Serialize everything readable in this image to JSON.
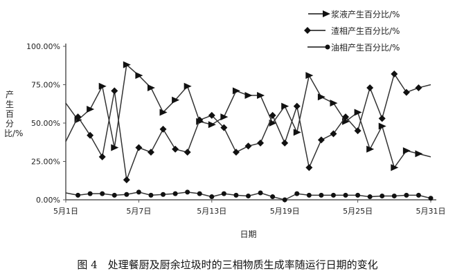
{
  "chart_data": {
    "type": "line",
    "title": "",
    "xlabel": "日期",
    "ylabel": "产生百分比/%",
    "ylim": [
      0,
      100
    ],
    "yticks": [
      "0.00%",
      "25.00%",
      "50.00%",
      "75.00%",
      "100.00%"
    ],
    "xticks": [
      "5月1日",
      "5月7日",
      "5月13日",
      "5月19日",
      "5月25日",
      "5月31日"
    ],
    "x": [
      1,
      2,
      3,
      4,
      5,
      6,
      7,
      8,
      9,
      10,
      11,
      12,
      13,
      14,
      15,
      16,
      17,
      18,
      19,
      20,
      21,
      22,
      23,
      24,
      25,
      26,
      27,
      28,
      29,
      30,
      31
    ],
    "legend_position": "top-right",
    "grid": false,
    "series": [
      {
        "name": "浆液产生百分比/%",
        "marker": "triangle",
        "values": [
          63,
          52,
          59,
          74,
          34,
          88,
          81,
          73,
          57,
          65,
          74,
          51,
          49,
          54,
          71,
          68,
          68,
          50,
          61,
          44,
          81,
          67,
          63,
          51,
          57,
          33,
          48,
          21,
          32,
          30,
          28
        ]
      },
      {
        "name": "渣相产生百分比/%",
        "marker": "diamond",
        "values": [
          38,
          54,
          42,
          28,
          71,
          13,
          34,
          31,
          46,
          33,
          31,
          52,
          55,
          47,
          31,
          35,
          37,
          55,
          37,
          61,
          21,
          39,
          43,
          54,
          45,
          73,
          53,
          82,
          70,
          73,
          75
        ]
      },
      {
        "name": "油相产生百分比/%",
        "marker": "circle",
        "values": [
          4.5,
          3,
          4,
          4,
          3,
          3.5,
          5,
          3,
          3.5,
          4,
          5,
          4,
          2,
          4,
          3,
          2.5,
          4.5,
          2,
          0,
          4,
          3,
          3,
          3,
          3,
          3,
          2,
          2.5,
          2.5,
          3,
          3,
          1
        ]
      }
    ]
  },
  "caption": "图 4　处理餐厨及厨余垃圾时的三相物质生成率随运行日期的变化"
}
